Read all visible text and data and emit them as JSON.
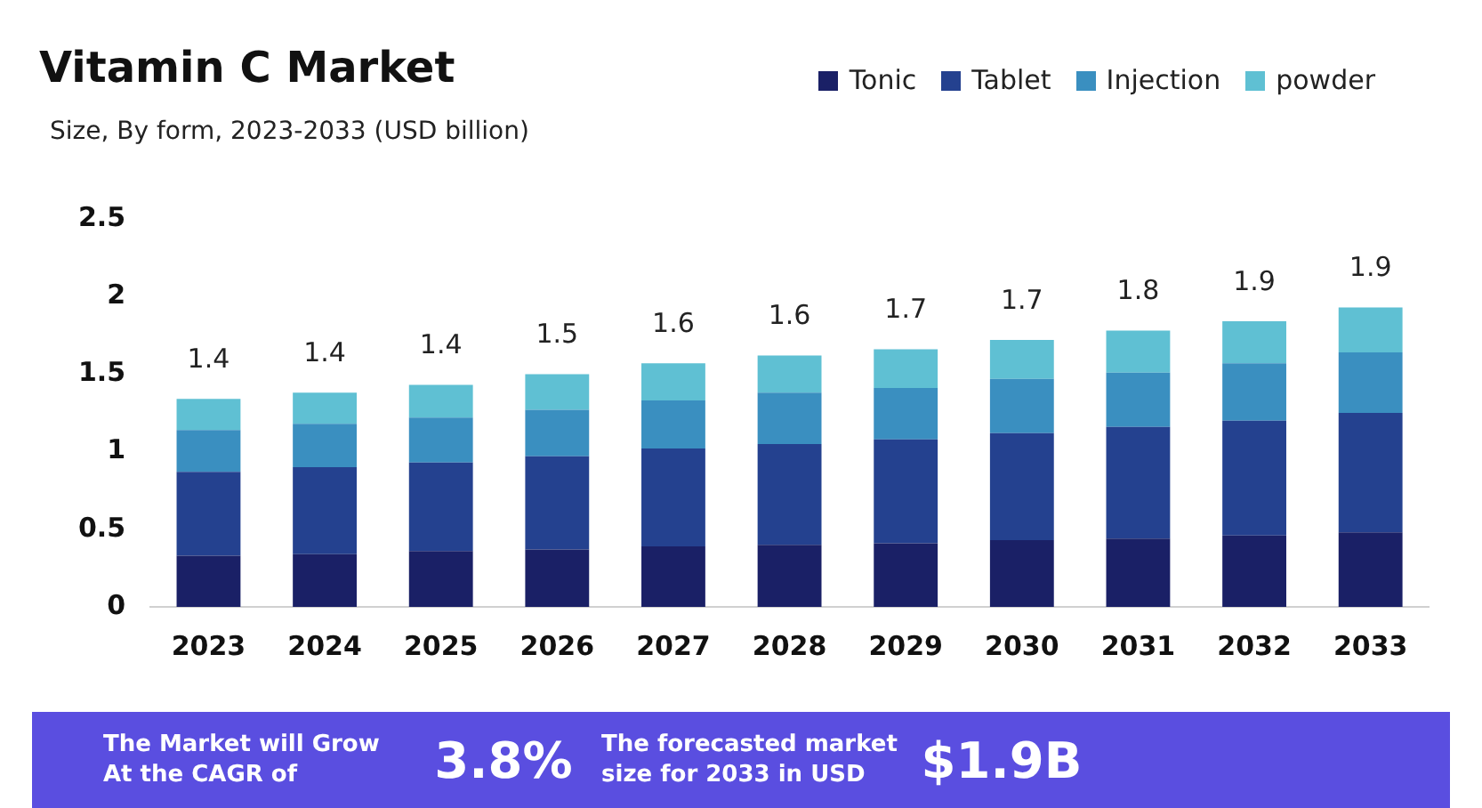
{
  "chart_data": {
    "type": "bar",
    "title": "Vitamin C Market",
    "subtitle": "Size, By form, 2023-2033 (USD billion)",
    "categories": [
      "2023",
      "2024",
      "2025",
      "2026",
      "2027",
      "2028",
      "2029",
      "2030",
      "2031",
      "2032",
      "2033"
    ],
    "series": [
      {
        "name": "Tonic",
        "color": "#1a2066",
        "values": [
          0.33,
          0.34,
          0.36,
          0.37,
          0.39,
          0.4,
          0.41,
          0.43,
          0.44,
          0.46,
          0.48
        ]
      },
      {
        "name": "Tablet",
        "color": "#24418f",
        "values": [
          0.54,
          0.56,
          0.57,
          0.6,
          0.63,
          0.65,
          0.67,
          0.69,
          0.72,
          0.74,
          0.77
        ]
      },
      {
        "name": "Injection",
        "color": "#3a8fc0",
        "values": [
          0.27,
          0.28,
          0.29,
          0.3,
          0.31,
          0.33,
          0.33,
          0.35,
          0.35,
          0.37,
          0.39
        ]
      },
      {
        "name": "powder",
        "color": "#5fc0d3",
        "values": [
          0.2,
          0.2,
          0.21,
          0.23,
          0.24,
          0.24,
          0.25,
          0.25,
          0.27,
          0.27,
          0.29
        ]
      }
    ],
    "stacked": true,
    "totals": [
      "1.4",
      "1.4",
      "1.4",
      "1.5",
      "1.6",
      "1.6",
      "1.7",
      "1.7",
      "1.8",
      "1.9",
      "1.9"
    ],
    "ylim": [
      0,
      2.5
    ],
    "yticks": [
      0,
      0.5,
      1,
      1.5,
      2,
      2.5
    ],
    "grid": false,
    "legend": "top right",
    "annotations": [
      "The Market will Grow At the CAGR of",
      "3.8%",
      "The forecasted market size for 2033 in USD",
      "$1.9B"
    ]
  }
}
